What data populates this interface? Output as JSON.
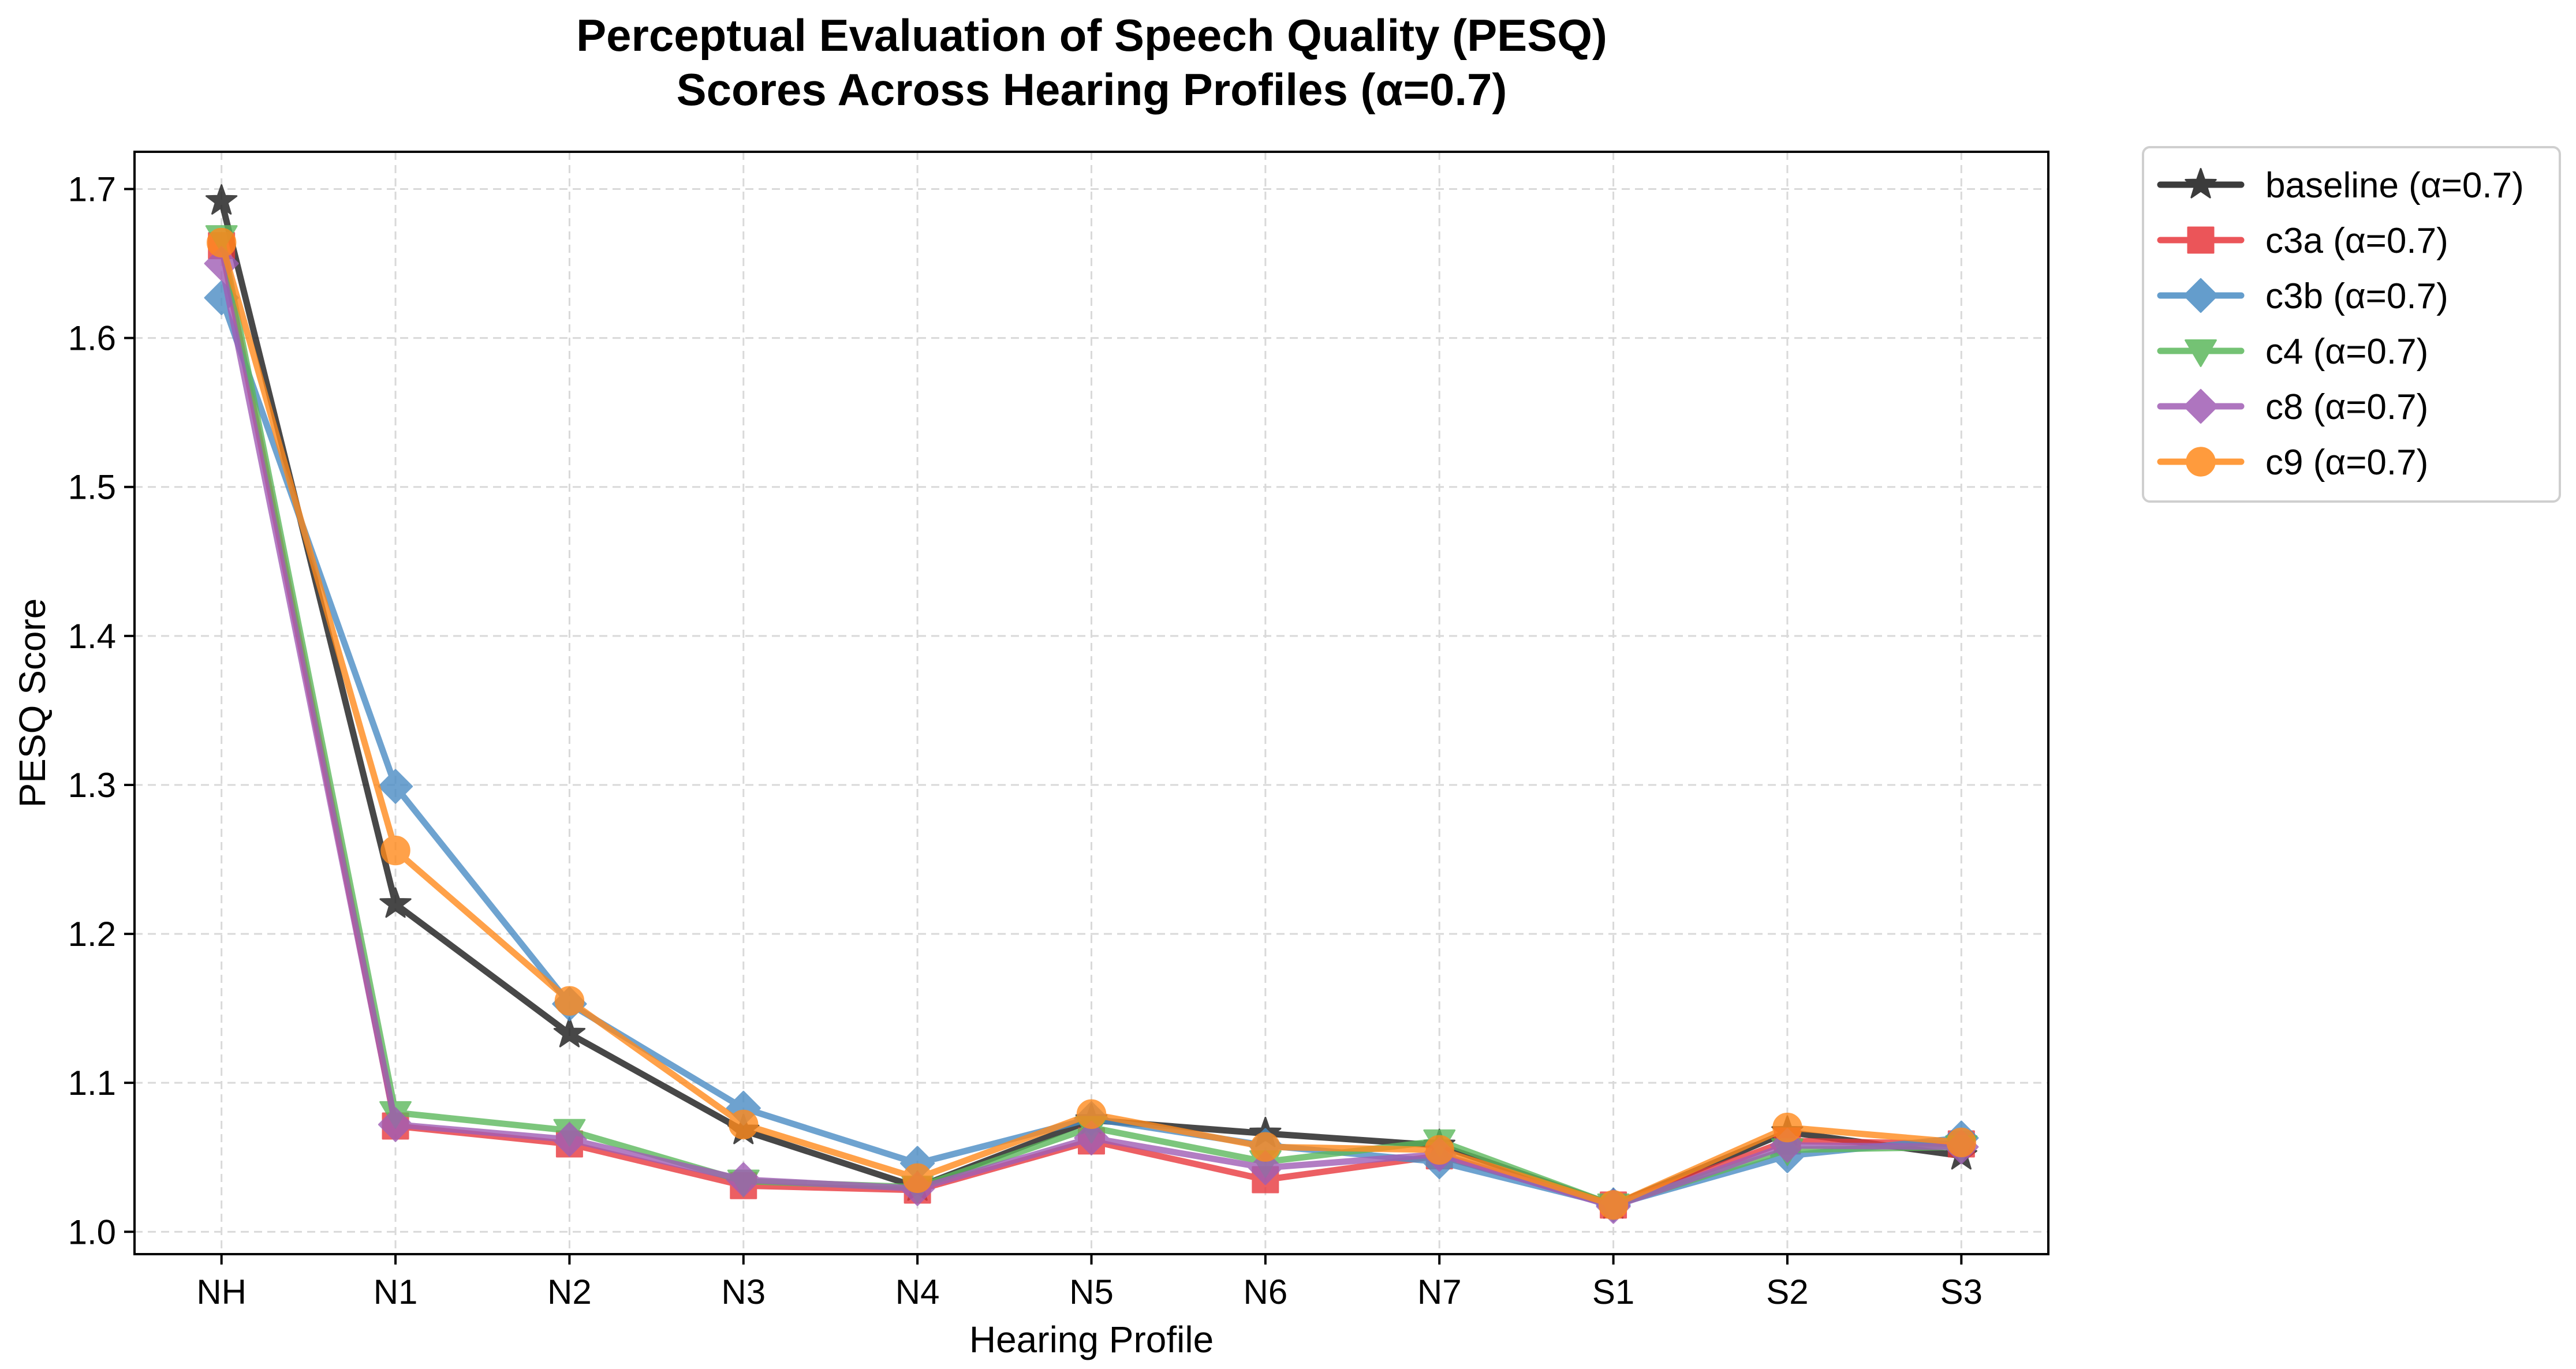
{
  "chart_data": {
    "type": "line",
    "title": [
      "Perceptual Evaluation of Speech Quality (PESQ)",
      "Scores Across Hearing Profiles (α=0.7)"
    ],
    "xlabel": "Hearing Profile",
    "ylabel": "PESQ Score",
    "categories": [
      "NH",
      "N1",
      "N2",
      "N3",
      "N4",
      "N5",
      "N6",
      "N7",
      "S1",
      "S2",
      "S3"
    ],
    "ylim": [
      0.985,
      1.725
    ],
    "yticks": [
      1.0,
      1.1,
      1.2,
      1.3,
      1.4,
      1.5,
      1.6,
      1.7
    ],
    "ytick_labels": [
      "1.0",
      "1.1",
      "1.2",
      "1.3",
      "1.4",
      "1.5",
      "1.6",
      "1.7"
    ],
    "grid": true,
    "legend_position": "outside-top-right",
    "series": [
      {
        "name": "baseline (α=0.7)",
        "color": "#1a1a1a",
        "marker": "star",
        "values": [
          1.692,
          1.22,
          1.133,
          1.068,
          1.03,
          1.075,
          1.066,
          1.058,
          1.018,
          1.067,
          1.051
        ]
      },
      {
        "name": "c3a (α=0.7)",
        "color": "#e8383d",
        "marker": "square",
        "values": [
          1.662,
          1.071,
          1.059,
          1.031,
          1.028,
          1.061,
          1.035,
          1.051,
          1.018,
          1.061,
          1.059
        ]
      },
      {
        "name": "c3b (α=0.7)",
        "color": "#4a8cc4",
        "marker": "diamond",
        "values": [
          1.627,
          1.299,
          1.153,
          1.083,
          1.046,
          1.076,
          1.058,
          1.047,
          1.018,
          1.051,
          1.063
        ]
      },
      {
        "name": "c4 (α=0.7)",
        "color": "#5cb85c",
        "marker": "triangle-down",
        "values": [
          1.668,
          1.08,
          1.068,
          1.034,
          1.03,
          1.07,
          1.047,
          1.061,
          1.018,
          1.055,
          1.057
        ]
      },
      {
        "name": "c8 (α=0.7)",
        "color": "#a05db5",
        "marker": "diamond",
        "values": [
          1.65,
          1.072,
          1.062,
          1.035,
          1.029,
          1.063,
          1.043,
          1.052,
          1.017,
          1.058,
          1.057
        ]
      },
      {
        "name": "c9 (α=0.7)",
        "color": "#ff8a1c",
        "marker": "circle",
        "values": [
          1.664,
          1.256,
          1.155,
          1.072,
          1.036,
          1.079,
          1.057,
          1.055,
          1.018,
          1.07,
          1.06
        ]
      }
    ]
  }
}
